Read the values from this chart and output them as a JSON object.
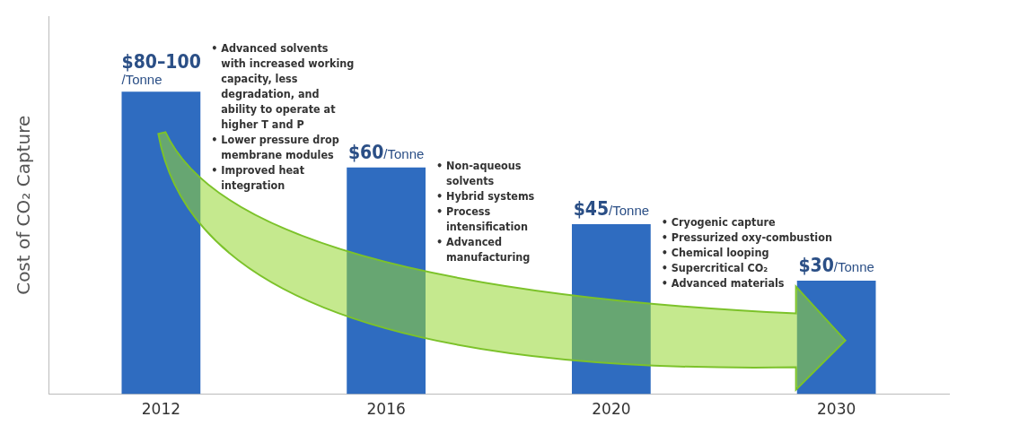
{
  "chart_data": {
    "type": "bar",
    "ylabel": "Cost of CO₂ Capture",
    "categories": [
      "2012",
      "2016",
      "2020",
      "2030"
    ],
    "values": [
      80,
      60,
      45,
      30
    ],
    "value_labels": [
      "$80–100/Tonne",
      "$60/Tonne",
      "$45/Tonne",
      "$30/Tonne"
    ],
    "color": "#2f6cc0",
    "ylim": [
      0,
      100
    ],
    "tick_labels": "x",
    "grid": false,
    "legend": false,
    "annotations": [
      "• Advanced solvents with increased working capacity, less degradation, and ability to operate at higher T and P • Lower pressure drop membrane modules • Improved heat integration",
      "• Non-aqueous solvents • Hybrid systems • Process intensification • Advanced manufacturing",
      "• Cryogenic capture • Pressurized oxy-combustion • Chemical looping • Supercritical CO₂ • Advanced materials"
    ]
  }
}
